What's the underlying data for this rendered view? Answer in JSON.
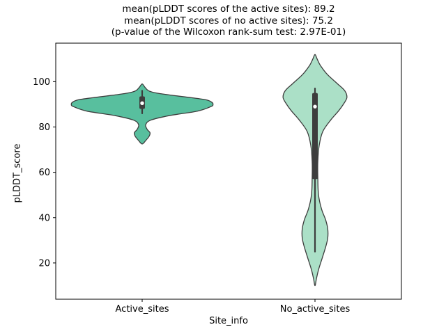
{
  "chart_data": {
    "type": "violin",
    "title_lines": [
      "mean(pLDDT scores of the active sites): 89.2",
      "mean(pLDDT scores of no active sites): 75.2",
      "(p-value of the Wilcoxon rank-sum test: 2.97E-01)"
    ],
    "xlabel": "Site_info",
    "ylabel": "pLDDT_score",
    "categories": [
      "Active_sites",
      "No_active_sites"
    ],
    "ylim": [
      4,
      117
    ],
    "yticks": [
      20,
      40,
      60,
      80,
      100
    ],
    "legend": "none",
    "grid": false,
    "stats": {
      "mean_active_sites": 89.2,
      "mean_no_active_sites": 75.2,
      "wilcoxon_rank_sum_p_value": "2.97E-01"
    },
    "series": [
      {
        "name": "Active_sites",
        "fill": "#58bf9e",
        "edge": "#3d3d3d",
        "box": {
          "q1": 88,
          "q3": 93.5,
          "median": 90.5,
          "whisker_low": 86,
          "whisker_high": 96
        },
        "profile": [
          [
            72.5,
            0.0
          ],
          [
            74,
            0.05
          ],
          [
            76,
            0.1
          ],
          [
            77.5,
            0.11
          ],
          [
            79,
            0.07
          ],
          [
            81,
            0.05
          ],
          [
            83,
            0.12
          ],
          [
            85,
            0.38
          ],
          [
            87,
            0.78
          ],
          [
            89,
            0.97
          ],
          [
            90,
            1.0
          ],
          [
            91,
            0.98
          ],
          [
            92,
            0.9
          ],
          [
            93,
            0.68
          ],
          [
            94,
            0.42
          ],
          [
            95,
            0.2
          ],
          [
            96,
            0.09
          ],
          [
            97.5,
            0.04
          ],
          [
            99,
            0.0
          ]
        ]
      },
      {
        "name": "No_active_sites",
        "fill": "#abe0c7",
        "edge": "#3d3d3d",
        "box": {
          "q1": 57,
          "q3": 95,
          "median": 89,
          "whisker_low": 25,
          "whisker_high": 97
        },
        "profile": [
          [
            10,
            0.0
          ],
          [
            13,
            0.02
          ],
          [
            17,
            0.05
          ],
          [
            22,
            0.1
          ],
          [
            27,
            0.15
          ],
          [
            31,
            0.18
          ],
          [
            35,
            0.18
          ],
          [
            39,
            0.15
          ],
          [
            44,
            0.09
          ],
          [
            50,
            0.05
          ],
          [
            57,
            0.04
          ],
          [
            65,
            0.04
          ],
          [
            72,
            0.06
          ],
          [
            78,
            0.11
          ],
          [
            83,
            0.22
          ],
          [
            87,
            0.33
          ],
          [
            90,
            0.4
          ],
          [
            93,
            0.45
          ],
          [
            96,
            0.42
          ],
          [
            99,
            0.32
          ],
          [
            103,
            0.18
          ],
          [
            107,
            0.08
          ],
          [
            110,
            0.03
          ],
          [
            112,
            0.0
          ]
        ]
      }
    ]
  }
}
